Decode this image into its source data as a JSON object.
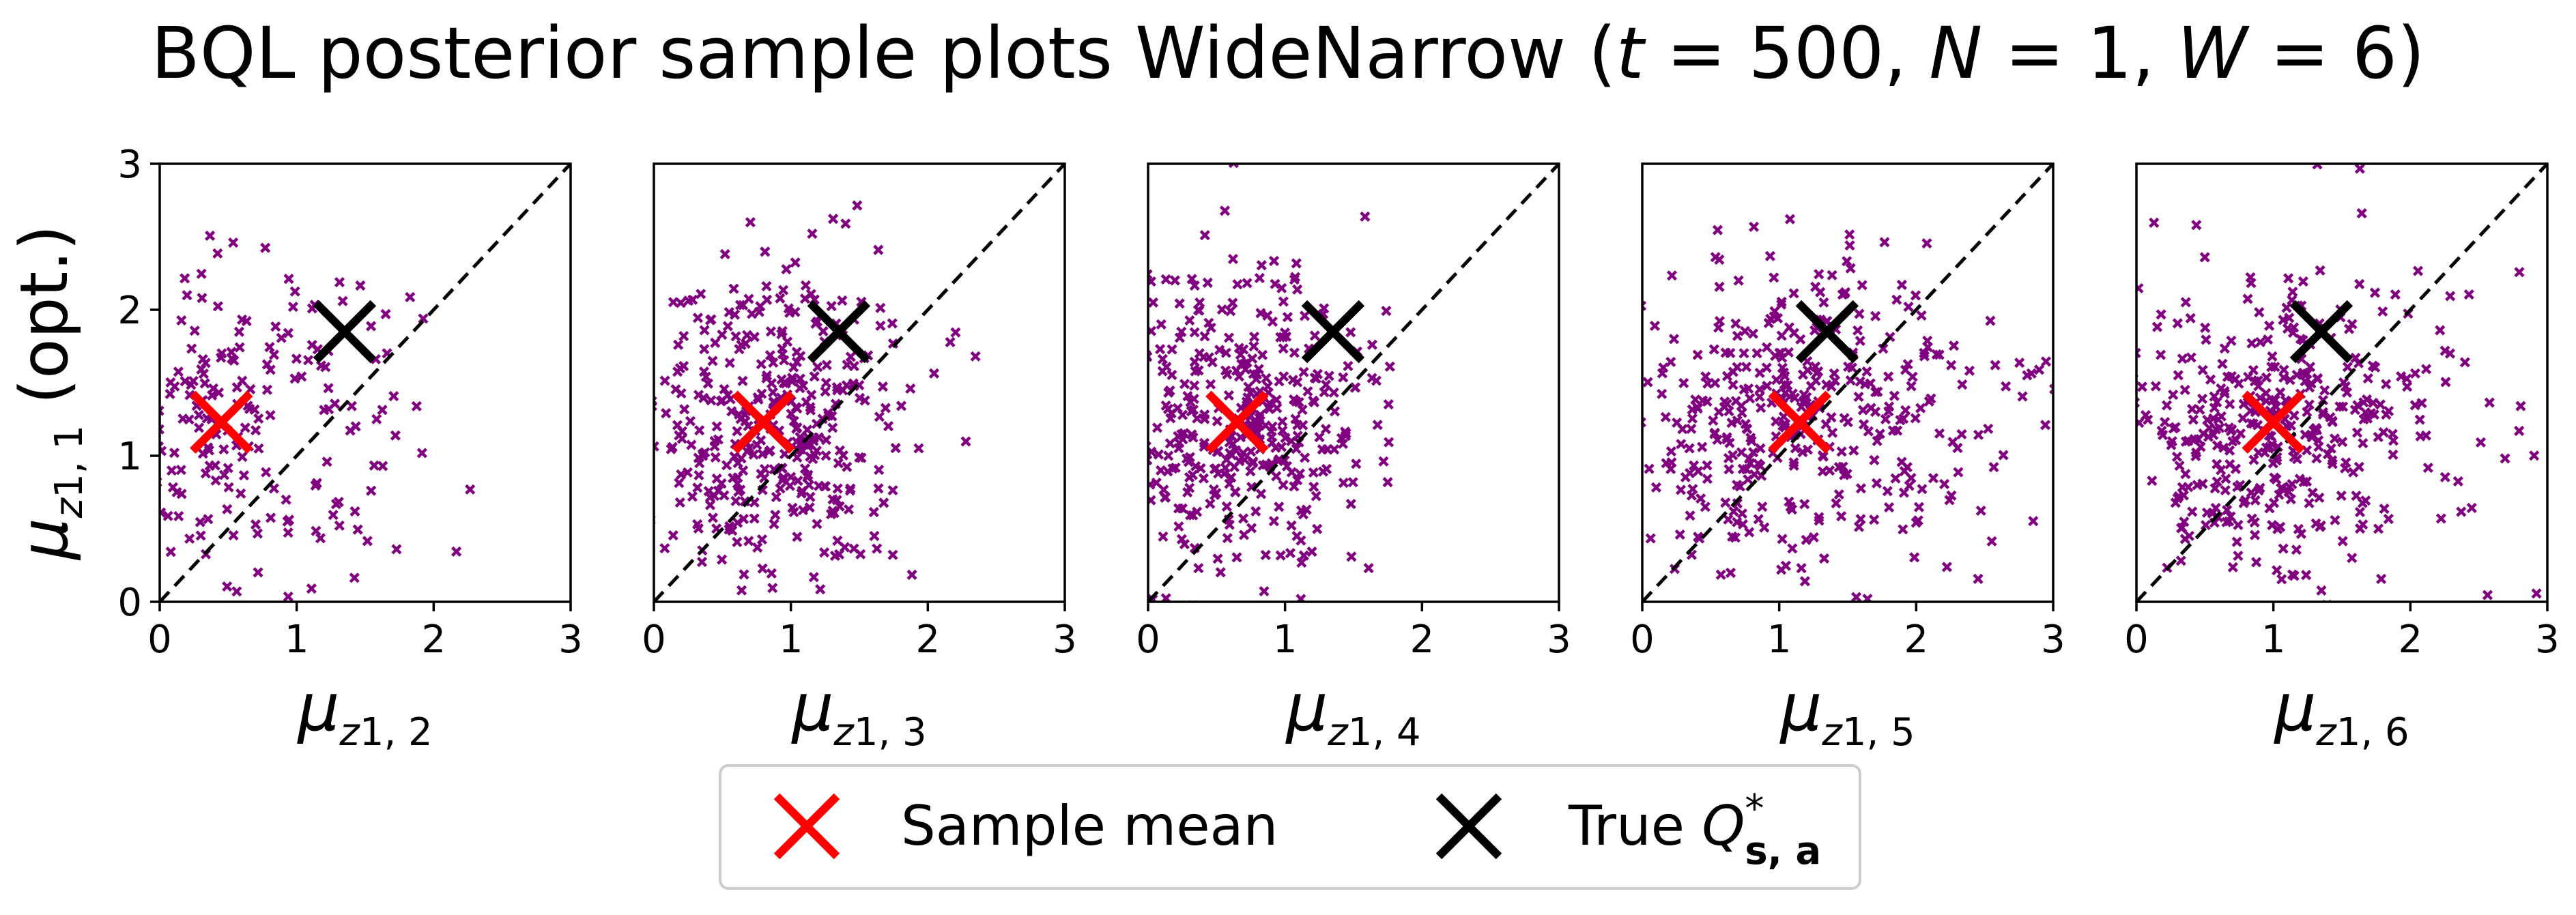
{
  "chart_data": {
    "type": "scatter",
    "title": {
      "prefix": "BQL posterior sample plots WideNarrow (",
      "t_var": "t",
      "t_val": " = 500, ",
      "n_var": "N",
      "n_val": " = 1, ",
      "w_var": "W",
      "w_val": " = 6)"
    },
    "ylabel": {
      "symbol": "μ",
      "sub_var": "z",
      "sub_idx": "1, 1",
      "suffix": " (opt.)"
    },
    "xlim": [
      0,
      3
    ],
    "ylim": [
      0,
      3
    ],
    "ticks": [
      "0",
      "1",
      "2",
      "3"
    ],
    "diagonal": "y = x",
    "colors": {
      "samples": "#800080",
      "sample_mean": "#ff0000",
      "true_q": "#000000",
      "diagonal": "#000000"
    },
    "true_q": [
      1.35,
      1.85
    ],
    "panels": [
      {
        "xlabel": {
          "symbol": "μ",
          "sub_var": "z",
          "sub_idx": "1, 2"
        },
        "sample_mean": [
          0.45,
          1.23
        ],
        "n_samples": 240,
        "spread": [
          0.7,
          0.55
        ]
      },
      {
        "xlabel": {
          "symbol": "μ",
          "sub_var": "z",
          "sub_idx": "1, 3"
        },
        "sample_mean": [
          0.8,
          1.23
        ],
        "n_samples": 400,
        "spread": [
          0.55,
          0.55
        ]
      },
      {
        "xlabel": {
          "symbol": "μ",
          "sub_var": "z",
          "sub_idx": "1, 4"
        },
        "sample_mean": [
          0.65,
          1.23
        ],
        "n_samples": 400,
        "spread": [
          0.5,
          0.55
        ]
      },
      {
        "xlabel": {
          "symbol": "μ",
          "sub_var": "z",
          "sub_idx": "1, 5"
        },
        "sample_mean": [
          1.15,
          1.23
        ],
        "n_samples": 400,
        "spread": [
          0.7,
          0.55
        ]
      },
      {
        "xlabel": {
          "symbol": "μ",
          "sub_var": "z",
          "sub_idx": "1, 6"
        },
        "sample_mean": [
          1.0,
          1.23
        ],
        "n_samples": 400,
        "spread": [
          0.65,
          0.55
        ]
      }
    ],
    "legend": {
      "placement": "bottom-center",
      "entries": [
        {
          "label": "Sample mean",
          "color": "#ff0000",
          "marker": "x"
        },
        {
          "label_prefix": "True ",
          "q_var": "Q",
          "q_sup": "*",
          "q_sub": "s, a",
          "color": "#000000",
          "marker": "x"
        }
      ]
    }
  }
}
